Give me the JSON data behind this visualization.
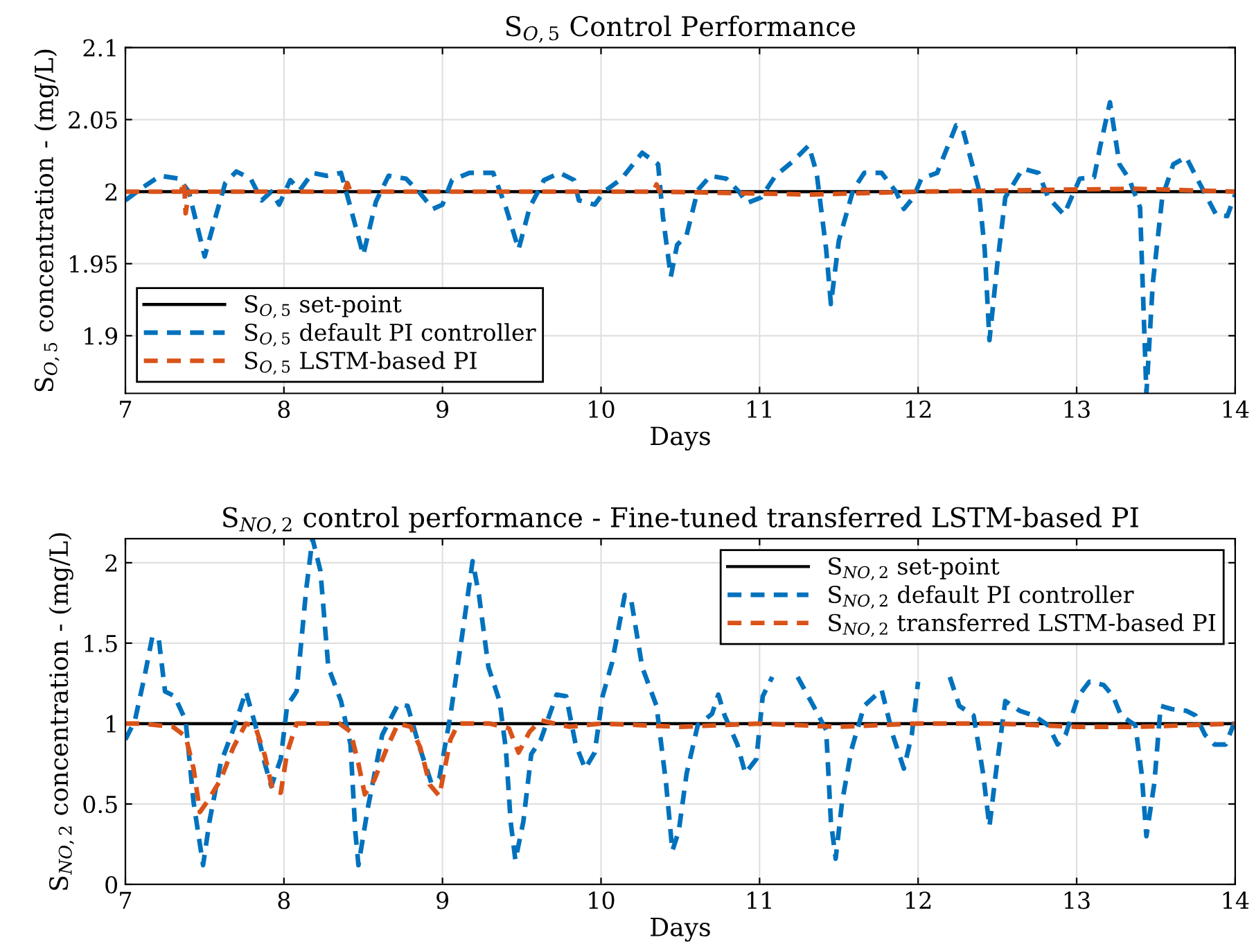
{
  "chart_data": [
    {
      "type": "line",
      "title": "S$_{O,5}$ Control Performance",
      "xlabel": "Days",
      "ylabel": "S$_{O,5}$ concentration - (mg/L)",
      "xlim": [
        7,
        14
      ],
      "xticks": [
        7,
        8,
        9,
        10,
        11,
        12,
        13,
        14
      ],
      "ylim": [
        1.86,
        2.1
      ],
      "yticks": [
        1.9,
        1.95,
        2,
        2.05,
        2.1
      ],
      "grid": true,
      "legend": "bottom left",
      "series": [
        {
          "name": "S$_{O,5}$ set-point",
          "color": "#000000",
          "line_style": "solid",
          "x": [
            7,
            14
          ],
          "values": [
            2,
            2
          ]
        },
        {
          "name": "S$_{O,5}$ default PI controller",
          "color": "#0072bd",
          "line_style": "dashed",
          "x": [
            7.0,
            7.11,
            7.22,
            7.34,
            7.4,
            7.5,
            7.57,
            7.63,
            7.7,
            7.79,
            7.86,
            7.92,
            7.97,
            8.04,
            8.1,
            8.18,
            8.27,
            8.36,
            8.42,
            8.5,
            8.58,
            8.66,
            8.77,
            8.85,
            8.94,
            9.0,
            9.06,
            9.17,
            9.32,
            9.4,
            9.48,
            9.55,
            9.64,
            9.74,
            9.83,
            9.86,
            9.96,
            10.02,
            10.13,
            10.26,
            10.36,
            10.39,
            10.44,
            10.48,
            10.54,
            10.61,
            10.69,
            10.79,
            10.87,
            10.92,
            11.01,
            11.1,
            11.21,
            11.31,
            11.36,
            11.42,
            11.45,
            11.5,
            11.59,
            11.66,
            11.77,
            11.86,
            11.91,
            11.97,
            12.02,
            12.12,
            12.24,
            12.28,
            12.38,
            12.42,
            12.45,
            12.5,
            12.55,
            12.66,
            12.76,
            12.82,
            12.92,
            13.02,
            13.11,
            13.15,
            13.21,
            13.27,
            13.33,
            13.4,
            13.44,
            13.48,
            13.54,
            13.61,
            13.69,
            13.76,
            13.88,
            13.95,
            14.0
          ],
          "values": [
            1.994,
            2.003,
            2.011,
            2.009,
            2.0,
            1.955,
            1.983,
            2.006,
            2.014,
            2.009,
            1.994,
            2.0,
            1.991,
            2.008,
            2.001,
            2.013,
            2.011,
            2.013,
            1.989,
            1.956,
            1.993,
            2.011,
            2.009,
            2.0,
            1.988,
            1.991,
            2.008,
            2.013,
            2.013,
            1.989,
            1.96,
            1.989,
            2.008,
            2.013,
            2.008,
            1.994,
            1.991,
            2.0,
            2.009,
            2.027,
            2.019,
            1.983,
            1.941,
            1.963,
            1.97,
            2.001,
            2.011,
            2.009,
            2.0,
            1.992,
            1.996,
            2.011,
            2.021,
            2.032,
            2.013,
            1.96,
            1.922,
            1.966,
            2.001,
            2.013,
            2.013,
            2.0,
            1.988,
            1.996,
            2.009,
            2.013,
            2.046,
            2.044,
            2.003,
            1.96,
            1.897,
            1.95,
            1.996,
            2.016,
            2.013,
            1.996,
            1.984,
            2.009,
            2.01,
            2.032,
            2.062,
            2.019,
            2.009,
            1.989,
            1.86,
            1.936,
            1.996,
            2.019,
            2.024,
            2.009,
            1.984,
            1.983,
            1.998
          ]
        },
        {
          "name": "S$_{O,5}$ LSTM-based PI",
          "color": "#d95319",
          "line_style": "dashed",
          "x": [
            7.0,
            7.35,
            7.37,
            7.38,
            7.4,
            8.38,
            8.4,
            8.42,
            10.33,
            10.35,
            10.37,
            11.33,
            12.0,
            13.37,
            14.0
          ],
          "values": [
            2.0,
            2.0,
            2.007,
            1.985,
            2.0,
            2.0,
            2.006,
            2.0,
            2.0,
            2.005,
            2.0,
            1.998,
            2.0,
            2.002,
            2.0
          ]
        }
      ]
    },
    {
      "type": "line",
      "title": "S$_{NO,2}$ control performance - Fine-tuned transferred LSTM-based PI",
      "xlabel": "Days",
      "ylabel": "S$_{NO,2}$ concentration - (mg/L)",
      "xlim": [
        7,
        14
      ],
      "xticks": [
        7,
        8,
        9,
        10,
        11,
        12,
        13,
        14
      ],
      "ylim": [
        0,
        2.15
      ],
      "yticks": [
        0,
        0.5,
        1,
        1.5,
        2
      ],
      "grid": true,
      "legend": "top right",
      "series": [
        {
          "name": "S$_{NO,2}$ set-point",
          "color": "#000000",
          "line_style": "solid",
          "x": [
            7,
            14
          ],
          "values": [
            1,
            1
          ]
        },
        {
          "name": "S$_{NO,2}$ default PI controller",
          "color": "#0072bd",
          "line_style": "dashed",
          "x": [
            7.0,
            7.06,
            7.12,
            7.17,
            7.21,
            7.25,
            7.31,
            7.38,
            7.43,
            7.49,
            7.53,
            7.6,
            7.69,
            7.76,
            7.82,
            7.88,
            7.92,
            7.98,
            8.02,
            8.08,
            8.14,
            8.18,
            8.23,
            8.28,
            8.36,
            8.42,
            8.45,
            8.47,
            8.53,
            8.62,
            8.72,
            8.78,
            8.85,
            8.93,
            8.98,
            9.05,
            9.13,
            9.19,
            9.23,
            9.29,
            9.36,
            9.4,
            9.43,
            9.46,
            9.51,
            9.56,
            9.62,
            9.72,
            9.78,
            9.84,
            9.9,
            9.96,
            10.01,
            10.07,
            10.15,
            10.19,
            10.26,
            10.35,
            10.41,
            10.45,
            10.49,
            10.54,
            10.61,
            10.7,
            10.74,
            10.78,
            10.86,
            10.91,
            10.98,
            11.02,
            11.08,
            11.16,
            11.24,
            11.34,
            11.42,
            11.45,
            11.48,
            11.52,
            11.58,
            11.66,
            11.77,
            11.84,
            11.91,
            11.96,
            12.0,
            12.1,
            12.2,
            12.26,
            12.35,
            12.41,
            12.45,
            12.49,
            12.55,
            12.64,
            12.73,
            12.82,
            12.88,
            12.93,
            13.01,
            13.08,
            13.17,
            13.23,
            13.28,
            13.37,
            13.41,
            13.44,
            13.49,
            13.53,
            13.6,
            13.69,
            13.75,
            13.81,
            13.87,
            13.94,
            14.0
          ],
          "values": [
            0.9,
            1.02,
            1.29,
            1.54,
            1.53,
            1.2,
            1.17,
            1.02,
            0.51,
            0.12,
            0.39,
            0.75,
            0.99,
            1.2,
            0.99,
            0.75,
            0.61,
            0.78,
            1.11,
            1.2,
            1.83,
            2.15,
            1.95,
            1.35,
            1.14,
            0.87,
            0.33,
            0.12,
            0.48,
            0.93,
            1.12,
            1.11,
            0.87,
            0.63,
            0.66,
            1.05,
            1.59,
            2.01,
            1.8,
            1.35,
            1.14,
            0.84,
            0.39,
            0.15,
            0.39,
            0.81,
            0.9,
            1.18,
            1.17,
            0.87,
            0.72,
            0.82,
            1.17,
            1.38,
            1.8,
            1.77,
            1.35,
            1.11,
            0.63,
            0.21,
            0.33,
            0.69,
            0.99,
            1.06,
            1.18,
            1.05,
            0.87,
            0.69,
            0.78,
            1.17,
            1.29,
            null,
            1.29,
            1.11,
            0.96,
            0.39,
            0.16,
            0.51,
            0.84,
            1.11,
            1.21,
            0.93,
            0.72,
            0.93,
            1.26,
            null,
            1.29,
            1.11,
            1.05,
            0.69,
            0.36,
            0.69,
            1.14,
            1.08,
            1.05,
            0.99,
            0.87,
            0.93,
            1.17,
            1.26,
            1.24,
            1.17,
            1.05,
            0.99,
            0.69,
            0.3,
            0.63,
            1.11,
            1.09,
            1.08,
            1.05,
            0.93,
            0.87,
            0.87,
            1.02
          ]
        },
        {
          "name": "S$_{NO,2}$ transferred LSTM-based PI",
          "color": "#d95319",
          "line_style": "dashed",
          "x": [
            7.0,
            7.1,
            7.3,
            7.38,
            7.43,
            7.47,
            7.52,
            7.6,
            7.68,
            7.76,
            7.82,
            7.88,
            7.93,
            7.98,
            8.02,
            8.08,
            8.2,
            8.35,
            8.42,
            8.47,
            8.51,
            8.57,
            8.65,
            8.72,
            8.8,
            8.86,
            8.92,
            8.98,
            9.05,
            9.1,
            9.3,
            9.42,
            9.48,
            9.55,
            9.62,
            9.8,
            10.0,
            10.5,
            11.0,
            11.5,
            12.0,
            12.5,
            13.0,
            13.4,
            14.0
          ],
          "values": [
            1.0,
            1.0,
            0.98,
            0.92,
            0.72,
            0.45,
            0.52,
            0.65,
            0.85,
            1.0,
            0.98,
            0.8,
            0.58,
            0.57,
            0.82,
            1.0,
            1.0,
            1.0,
            0.95,
            0.75,
            0.56,
            0.65,
            0.85,
            1.0,
            0.98,
            0.85,
            0.62,
            0.55,
            0.9,
            1.0,
            1.0,
            0.97,
            0.82,
            0.95,
            1.02,
            0.98,
            1.0,
            0.98,
            1.0,
            0.98,
            1.0,
            1.0,
            0.98,
            0.98,
            1.0
          ]
        }
      ]
    }
  ]
}
